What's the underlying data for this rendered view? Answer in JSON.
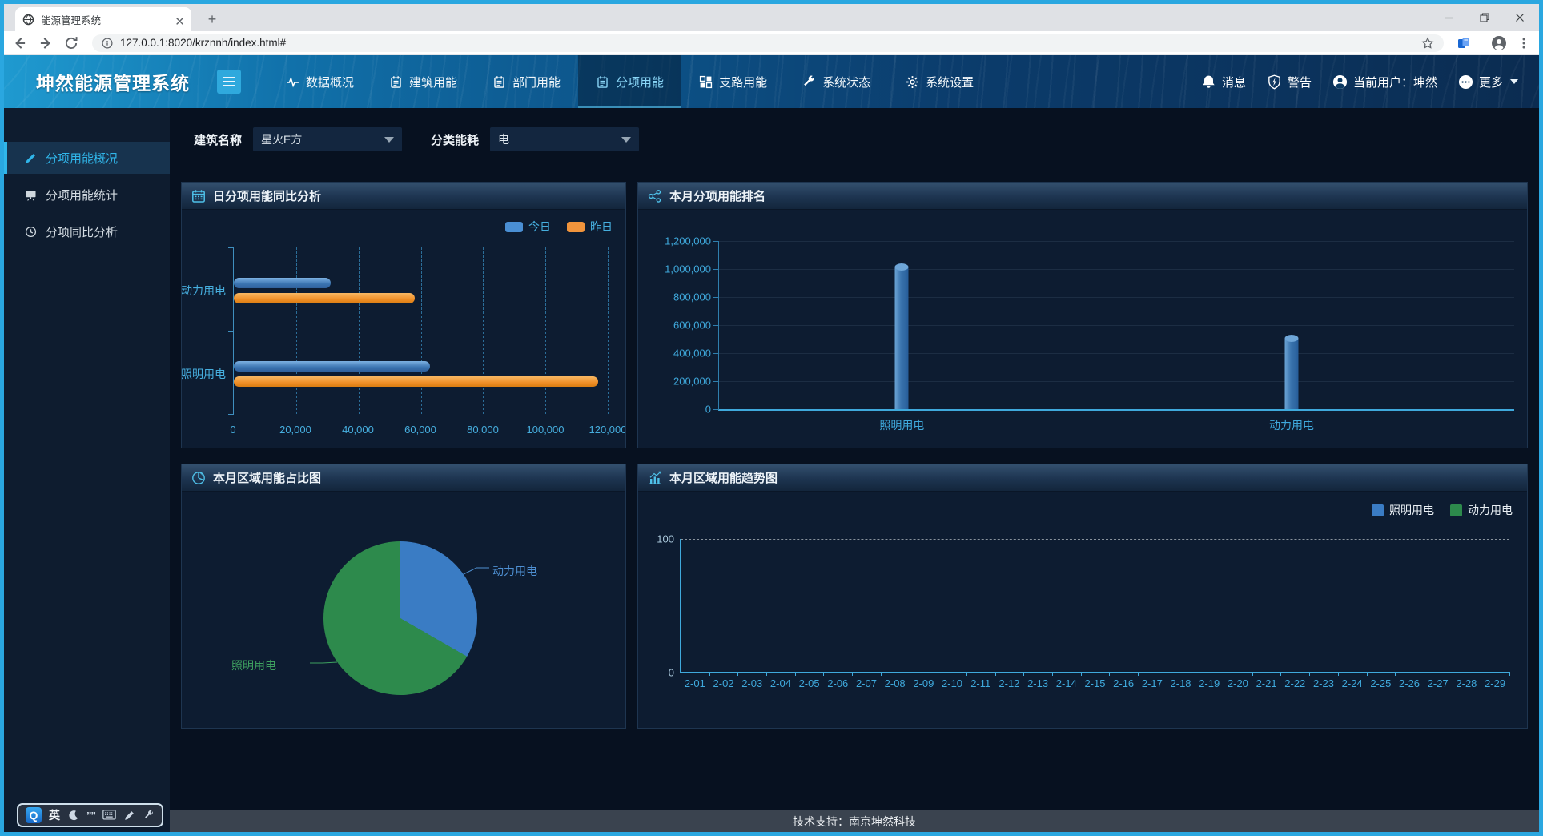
{
  "browser": {
    "tab_title": "能源管理系统",
    "url": "127.0.0.1:8020/krznnh/index.html#"
  },
  "header": {
    "app_title": "坤然能源管理系统",
    "nav": [
      {
        "key": "data-overview",
        "label": "数据概况",
        "icon": "pulse",
        "active": false
      },
      {
        "key": "building-energy",
        "label": "建筑用能",
        "icon": "notebook",
        "active": false
      },
      {
        "key": "department-energy",
        "label": "部门用能",
        "icon": "notebook",
        "active": false
      },
      {
        "key": "subitem-energy",
        "label": "分项用能",
        "icon": "notebook",
        "active": true
      },
      {
        "key": "branch-energy",
        "label": "支路用能",
        "icon": "branch",
        "active": false
      },
      {
        "key": "system-status",
        "label": "系统状态",
        "icon": "wrench",
        "active": false
      },
      {
        "key": "system-settings",
        "label": "系统设置",
        "icon": "gear",
        "active": false
      }
    ],
    "right": {
      "messages": "消息",
      "alerts": "警告",
      "current_user": "当前用户：坤然",
      "more": "更多"
    }
  },
  "sidebar": {
    "items": [
      {
        "key": "subitem-overview",
        "label": "分项用能概况",
        "icon": "pencil",
        "active": true
      },
      {
        "key": "subitem-statistics",
        "label": "分项用能统计",
        "icon": "presentation",
        "active": false
      },
      {
        "key": "subitem-yoy-analysis",
        "label": "分项同比分析",
        "icon": "clock",
        "active": false
      }
    ]
  },
  "filters": {
    "building_label": "建筑名称",
    "building_value": "星火E方",
    "energy_label": "分类能耗",
    "energy_value": "电"
  },
  "colors": {
    "accent_cyan": "#30b6ea",
    "header_blue": "#0d568c",
    "axis_cyan": "#3fa9dc",
    "bar_blue": "#3a73b0",
    "bar_orange": "#ef8f28",
    "pie_blue": "#3a7cc4",
    "pie_green": "#2d8a4c"
  },
  "chart_data": [
    {
      "type": "bar-horizontal",
      "title": "日分项用能同比分析",
      "categories": [
        "动力用电",
        "照明用电"
      ],
      "series": [
        {
          "name": "今日",
          "color": "#4a8fd4",
          "values": [
            31000,
            63000
          ]
        },
        {
          "name": "昨日",
          "color": "#f0943c",
          "values": [
            58000,
            117000
          ]
        }
      ],
      "xlim": [
        0,
        120000
      ],
      "xticks": [
        "0",
        "20,000",
        "40,000",
        "60,000",
        "80,000",
        "100,000",
        "120,000"
      ],
      "legend_position": "top-right",
      "grid": "dashed-vertical"
    },
    {
      "type": "bar",
      "title": "本月分项用能排名",
      "categories": [
        "照明用电",
        "动力用电"
      ],
      "values": [
        1020000,
        510000
      ],
      "bar_color": "#3a74ae",
      "ylim": [
        0,
        1200000
      ],
      "yticks": [
        "1,200,000",
        "1,000,000",
        "800,000",
        "600,000",
        "400,000",
        "200,000",
        "0"
      ],
      "grid": "horizontal-faint"
    },
    {
      "type": "pie",
      "title": "本月区域用能占比图",
      "slices": [
        {
          "label": "动力用电",
          "pct": 33.3,
          "color": "#3a7cc4"
        },
        {
          "label": "照明用电",
          "pct": 66.7,
          "color": "#2d8a4c"
        }
      ]
    },
    {
      "type": "line",
      "title": "本月区域用能趋势图",
      "legend": [
        {
          "label": "照明用电",
          "color": "#3a7cc4"
        },
        {
          "label": "动力用电",
          "color": "#2d8a4c"
        }
      ],
      "ylim": [
        0,
        100
      ],
      "yticks": [
        "100",
        "0"
      ],
      "x": [
        "2-01",
        "2-02",
        "2-03",
        "2-04",
        "2-05",
        "2-06",
        "2-07",
        "2-08",
        "2-09",
        "2-10",
        "2-11",
        "2-12",
        "2-13",
        "2-14",
        "2-15",
        "2-16",
        "2-17",
        "2-18",
        "2-19",
        "2-20",
        "2-21",
        "2-22",
        "2-23",
        "2-24",
        "2-25",
        "2-26",
        "2-27",
        "2-28",
        "2-29"
      ],
      "series_values": [],
      "legend_position": "top-right"
    }
  ],
  "footer": {
    "text": "技术支持：南京坤然科技"
  },
  "ime": {
    "lang": "英"
  }
}
